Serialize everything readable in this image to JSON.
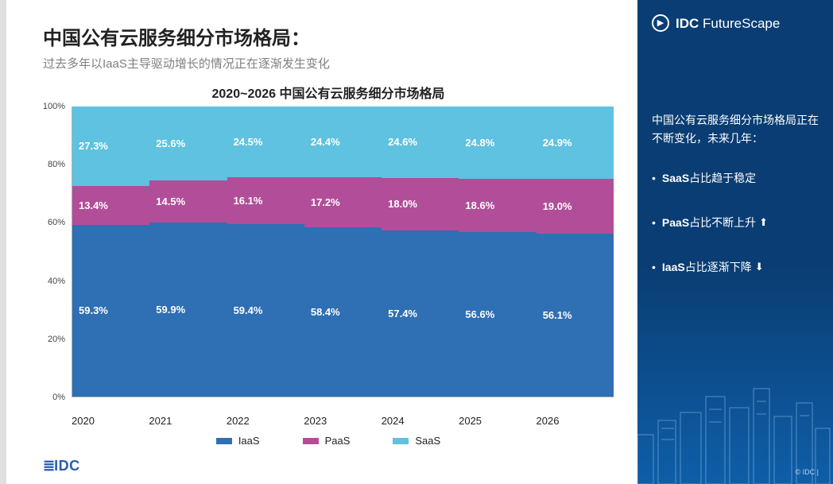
{
  "left": {
    "title": "中国公有云服务细分市场格局：",
    "subtitle": "过去多年以IaaS主导驱动增长的情况正在逐渐发生变化",
    "chart_title": "2020~2026 中国公有云服务细分市场格局",
    "logo_text": "IDC"
  },
  "right": {
    "brand_prefix": "IDC",
    "brand_suffix": " FutureScape",
    "intro": "中国公有云服务细分市场格局正在不断变化，未来几年：",
    "bullets": [
      {
        "text": "SaaS占比趋于稳定",
        "arrow": ""
      },
      {
        "text": "PaaS占比不断上升",
        "arrow": "⬆"
      },
      {
        "text": "IaaS占比逐渐下降",
        "arrow": "⬇"
      }
    ],
    "footer": "© IDC |"
  },
  "chart": {
    "type": "stacked-area-100pct",
    "x_labels": [
      "2020",
      "2021",
      "2022",
      "2023",
      "2024",
      "2025",
      "2026"
    ],
    "y_ticks": [
      0,
      20,
      40,
      60,
      80,
      100
    ],
    "y_tick_suffix": "%",
    "ylim": [
      0,
      100
    ],
    "series_order": [
      "IaaS",
      "PaaS",
      "SaaS"
    ],
    "series": {
      "IaaS": {
        "color": "#2f6fb3",
        "values": [
          59.3,
          59.9,
          59.4,
          58.4,
          57.4,
          56.6,
          56.1
        ]
      },
      "PaaS": {
        "color": "#b24e99",
        "values": [
          13.4,
          14.5,
          16.1,
          17.2,
          18.0,
          18.6,
          19.0
        ]
      },
      "SaaS": {
        "color": "#5fc2e0",
        "values": [
          27.3,
          25.6,
          24.5,
          24.4,
          24.6,
          24.8,
          24.9
        ]
      }
    },
    "value_label_suffix": "%",
    "value_label_fontsize": 13,
    "grid_color": "#e6e6e6",
    "axis_color": "#b0b0b0",
    "label_font_color": "#ffffff",
    "background_color": "#ffffff"
  }
}
